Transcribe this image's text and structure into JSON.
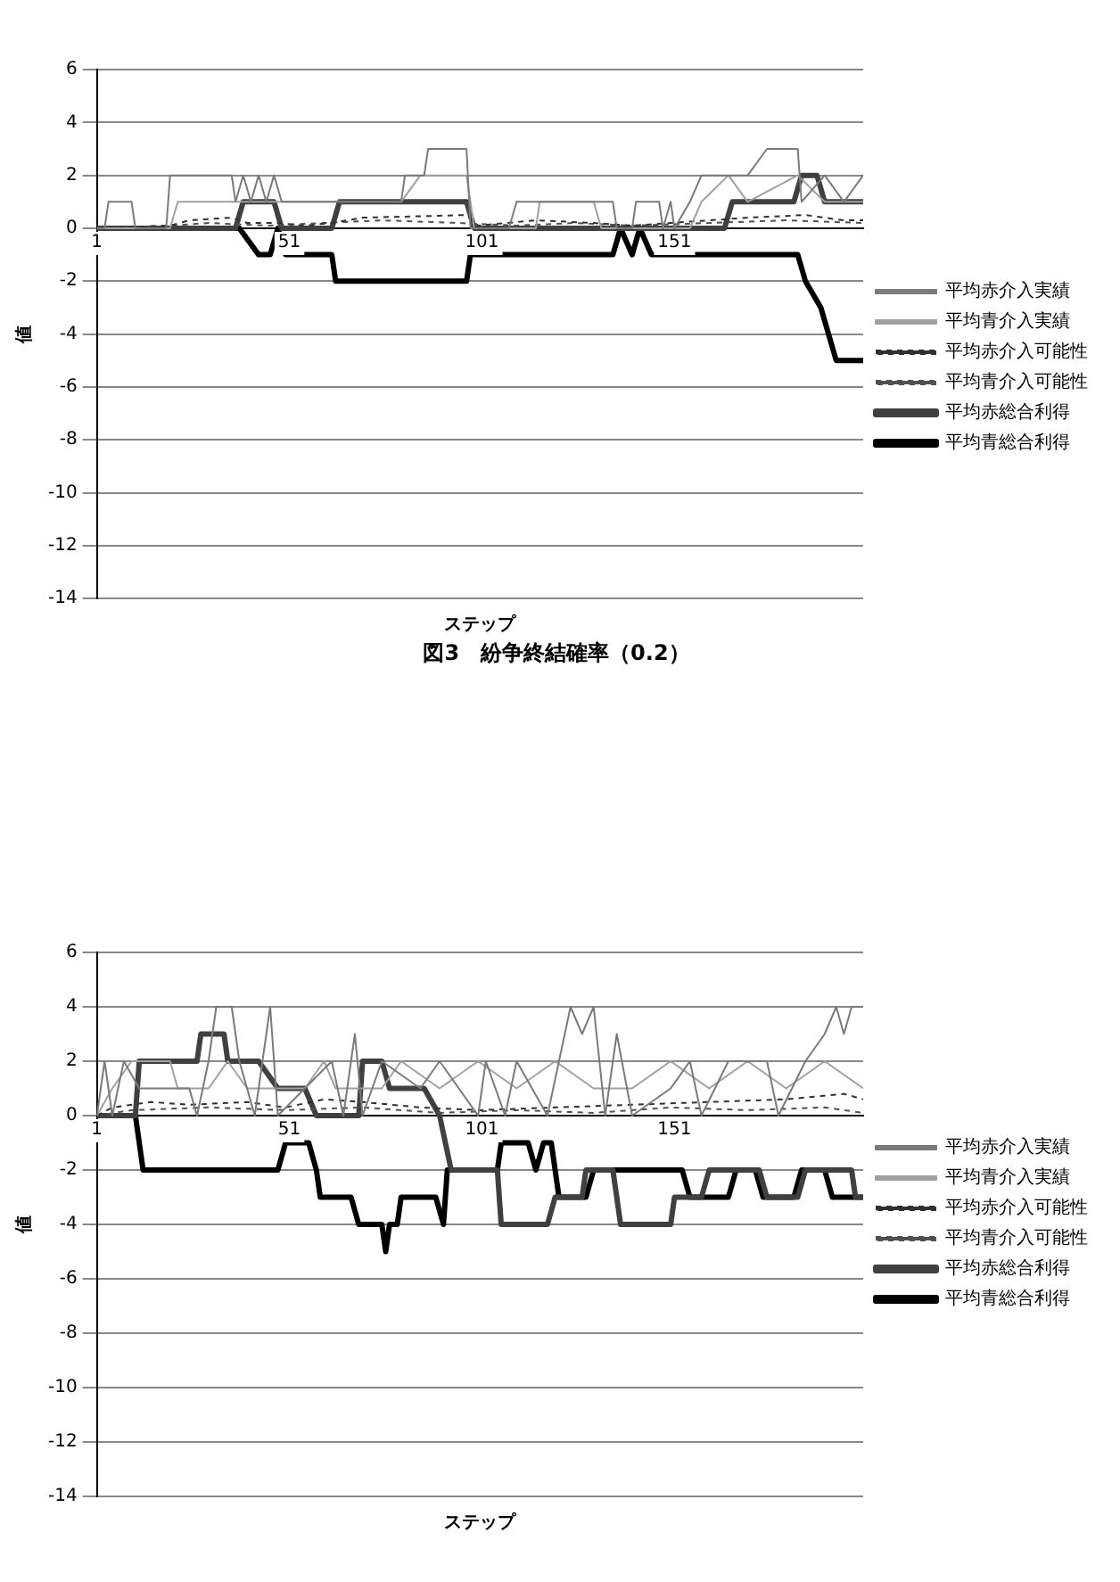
{
  "chart_data": [
    {
      "type": "line",
      "title": "図3　紛争終結確率（0.2）",
      "xlabel": "ステップ",
      "ylabel": "値",
      "xlim": [
        1,
        200
      ],
      "xticks": [
        1,
        51,
        101,
        151
      ],
      "ylim": [
        -14,
        6
      ],
      "yticks": [
        -14,
        -12,
        -10,
        -8,
        -6,
        -4,
        -2,
        0,
        2,
        4,
        6
      ],
      "grid": "y",
      "legend": "right",
      "marker": "none",
      "series": [
        {
          "name": "平均赤介入実績",
          "color": "#7a7a7a",
          "line_style": "solid",
          "x": [
            1,
            3,
            4,
            10,
            11,
            19,
            20,
            36,
            37,
            39,
            41,
            43,
            45,
            47,
            49,
            80,
            81,
            86,
            87,
            97,
            98,
            108,
            110,
            135,
            136,
            140,
            141,
            147,
            148,
            150,
            151,
            155,
            158,
            170,
            175,
            183,
            184,
            190,
            195,
            200
          ],
          "values": [
            0,
            0,
            1,
            1,
            0,
            0,
            2,
            2,
            1,
            2,
            1,
            2,
            1,
            2,
            1,
            1,
            2,
            2,
            3,
            3,
            0,
            0,
            1,
            1,
            0,
            0,
            1,
            1,
            0,
            1,
            0,
            1,
            2,
            2,
            3,
            3,
            1,
            2,
            1,
            2
          ]
        },
        {
          "name": "平均青介入実績",
          "color": "#a0a0a0",
          "line_style": "solid",
          "x": [
            1,
            20,
            22,
            36,
            62,
            80,
            85,
            97,
            99,
            115,
            116,
            130,
            132,
            155,
            158,
            165,
            170,
            183,
            190,
            200
          ],
          "values": [
            0,
            0,
            1,
            1,
            1,
            1,
            2,
            2,
            0,
            0,
            1,
            1,
            0,
            0,
            1,
            2,
            1,
            2,
            1,
            1
          ]
        },
        {
          "name": "平均赤介入可能性",
          "color": "#303030",
          "line_style": "dotted",
          "x": [
            1,
            20,
            25,
            36,
            40,
            47,
            55,
            62,
            70,
            97,
            100,
            115,
            130,
            140,
            150,
            160,
            170,
            185,
            195,
            200
          ],
          "values": [
            0,
            0.1,
            0.3,
            0.4,
            0.2,
            0.2,
            0.1,
            0.2,
            0.4,
            0.5,
            0.1,
            0.3,
            0.2,
            0.1,
            0.2,
            0.3,
            0.4,
            0.5,
            0.3,
            0.3
          ]
        },
        {
          "name": "平均青介入可能性",
          "color": "#505050",
          "line_style": "dotted",
          "x": [
            1,
            20,
            30,
            45,
            60,
            75,
            95,
            110,
            125,
            140,
            160,
            180,
            200
          ],
          "values": [
            0,
            0.1,
            0.2,
            0.1,
            0.2,
            0.3,
            0.2,
            0.1,
            0.2,
            0.1,
            0.2,
            0.3,
            0.2
          ]
        },
        {
          "name": "平均赤総合利得",
          "color": "#404040",
          "line_style": "solid",
          "x": [
            1,
            37,
            39,
            47,
            49,
            62,
            64,
            97,
            99,
            164,
            166,
            182,
            184,
            188,
            190,
            200
          ],
          "values": [
            0,
            0,
            1,
            1,
            0,
            0,
            1,
            1,
            0,
            0,
            1,
            1,
            2,
            2,
            1,
            1
          ]
        },
        {
          "name": "平均青総合利得",
          "color": "#000000",
          "line_style": "solid",
          "x": [
            1,
            38,
            43,
            46,
            48,
            50,
            62,
            63,
            97,
            98,
            135,
            137,
            140,
            142,
            145,
            147,
            183,
            185,
            189,
            191,
            193,
            200
          ],
          "values": [
            0,
            0,
            -1,
            -1,
            0,
            -1,
            -1,
            -2,
            -2,
            -1,
            -1,
            0,
            -1,
            0,
            -1,
            -1,
            -1,
            -2,
            -3,
            -4,
            -5,
            -5
          ]
        }
      ]
    },
    {
      "type": "line",
      "xlabel": "ステップ",
      "ylabel": "値",
      "xlim": [
        1,
        200
      ],
      "xticks": [
        1,
        51,
        101,
        151
      ],
      "ylim": [
        -14,
        6
      ],
      "yticks": [
        -14,
        -12,
        -10,
        -8,
        -6,
        -4,
        -2,
        0,
        2,
        4,
        6
      ],
      "grid": "y",
      "legend": "right",
      "marker": "none",
      "series": [
        {
          "name": "平均赤介入実績",
          "color": "#7a7a7a",
          "line_style": "solid",
          "x": [
            1,
            3,
            5,
            8,
            12,
            25,
            27,
            30,
            32,
            36,
            38,
            42,
            44,
            46,
            48,
            55,
            62,
            65,
            68,
            70,
            75,
            85,
            90,
            100,
            102,
            107,
            110,
            118,
            124,
            127,
            130,
            133,
            136,
            140,
            150,
            155,
            158,
            165,
            175,
            178,
            185,
            190,
            193,
            195,
            197,
            200
          ],
          "values": [
            0,
            2,
            0,
            2,
            1,
            1,
            0,
            2,
            4,
            4,
            2,
            0,
            2,
            4,
            0,
            1,
            2,
            0,
            3,
            0,
            2,
            1,
            2,
            0,
            2,
            0,
            2,
            0,
            4,
            3,
            4,
            0,
            3,
            0,
            1,
            2,
            0,
            2,
            2,
            0,
            2,
            3,
            4,
            3,
            4,
            4
          ]
        },
        {
          "name": "平均青介入実績",
          "color": "#a0a0a0",
          "line_style": "solid",
          "x": [
            1,
            5,
            10,
            20,
            22,
            30,
            35,
            40,
            55,
            60,
            63,
            75,
            80,
            90,
            100,
            110,
            120,
            130,
            140,
            150,
            160,
            170,
            180,
            190,
            200
          ],
          "values": [
            0,
            1,
            2,
            2,
            1,
            1,
            2,
            1,
            1,
            2,
            1,
            1,
            2,
            1,
            2,
            1,
            2,
            1,
            1,
            2,
            1,
            2,
            1,
            2,
            1
          ]
        },
        {
          "name": "平均赤介入可能性",
          "color": "#303030",
          "line_style": "dotted",
          "x": [
            1,
            5,
            15,
            25,
            40,
            50,
            60,
            70,
            85,
            100,
            120,
            140,
            160,
            180,
            195,
            200
          ],
          "values": [
            0,
            0.3,
            0.5,
            0.4,
            0.5,
            0.3,
            0.6,
            0.5,
            0.3,
            0.2,
            0.3,
            0.4,
            0.5,
            0.6,
            0.8,
            0.6
          ]
        },
        {
          "name": "平均青介入可能性",
          "color": "#505050",
          "line_style": "dotted",
          "x": [
            1,
            10,
            30,
            50,
            70,
            90,
            110,
            130,
            150,
            170,
            190,
            200
          ],
          "values": [
            0,
            0.2,
            0.3,
            0.2,
            0.3,
            0.1,
            0.2,
            0.1,
            0.3,
            0.2,
            0.3,
            0.1
          ]
        },
        {
          "name": "平均赤総合利得",
          "color": "#404040",
          "line_style": "solid",
          "x": [
            1,
            11,
            12,
            27,
            28,
            34,
            35,
            43,
            48,
            55,
            58,
            69,
            70,
            75,
            77,
            86,
            90,
            93,
            105,
            106,
            118,
            120,
            127,
            128,
            135,
            137,
            150,
            151,
            158,
            160,
            173,
            175,
            183,
            185,
            197,
            198,
            200
          ],
          "values": [
            0,
            0,
            2,
            2,
            3,
            3,
            2,
            2,
            1,
            1,
            0,
            0,
            2,
            2,
            1,
            1,
            0,
            -2,
            -2,
            -4,
            -4,
            -3,
            -3,
            -2,
            -2,
            -4,
            -4,
            -3,
            -3,
            -2,
            -2,
            -3,
            -3,
            -2,
            -2,
            -3,
            -3
          ]
        },
        {
          "name": "平均青総合利得",
          "color": "#000000",
          "line_style": "solid",
          "x": [
            1,
            11,
            13,
            48,
            50,
            56,
            58,
            59,
            67,
            69,
            75,
            76,
            77,
            79,
            80,
            89,
            91,
            92,
            105,
            106,
            113,
            115,
            117,
            119,
            121,
            128,
            130,
            153,
            155,
            165,
            167,
            172,
            174,
            182,
            184,
            190,
            192,
            200
          ],
          "values": [
            0,
            0,
            -2,
            -2,
            -1,
            -1,
            -2,
            -3,
            -3,
            -4,
            -4,
            -5,
            -4,
            -4,
            -3,
            -3,
            -4,
            -2,
            -2,
            -1,
            -1,
            -2,
            -1,
            -1,
            -3,
            -3,
            -2,
            -2,
            -3,
            -3,
            -2,
            -2,
            -3,
            -3,
            -2,
            -2,
            -3,
            -3
          ]
        }
      ]
    }
  ]
}
